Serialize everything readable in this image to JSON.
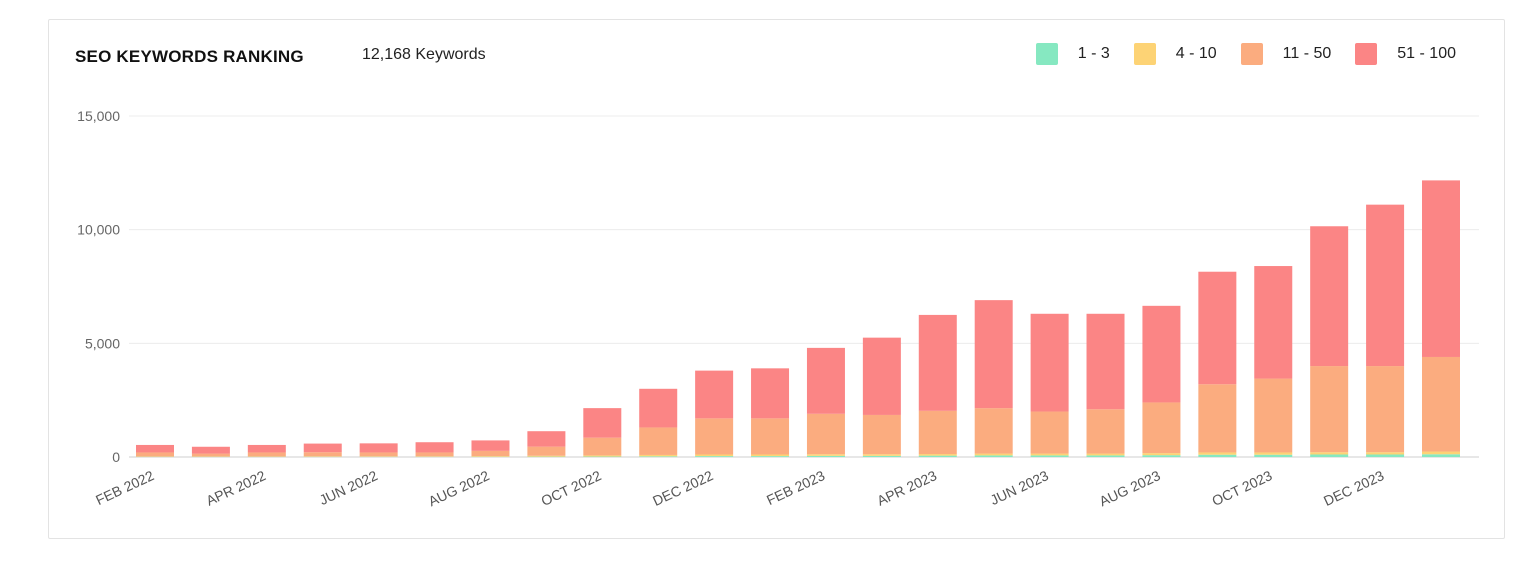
{
  "header": {
    "title": "SEO KEYWORDS RANKING",
    "keyword_count": "12,168 Keywords"
  },
  "legend": [
    {
      "label": "1 - 3",
      "color": "#86e8c1"
    },
    {
      "label": "4 - 10",
      "color": "#fdd375"
    },
    {
      "label": "11 - 50",
      "color": "#fbac7f"
    },
    {
      "label": "51 - 100",
      "color": "#fb8585"
    }
  ],
  "chart_data": {
    "type": "bar",
    "stacked": true,
    "title": "SEO KEYWORDS RANKING",
    "xlabel": "",
    "ylabel": "",
    "ylim": [
      0,
      15000
    ],
    "yticks": [
      0,
      5000,
      10000,
      15000
    ],
    "ytick_labels": [
      "0",
      "5,000",
      "10,000",
      "15,000"
    ],
    "grid": true,
    "legend_position": "top-right",
    "categories": [
      "FEB 2022",
      "MAR 2022",
      "APR 2022",
      "MAY 2022",
      "JUN 2022",
      "JUL 2022",
      "AUG 2022",
      "SEP 2022",
      "OCT 2022",
      "NOV 2022",
      "DEC 2022",
      "JAN 2023",
      "FEB 2023",
      "MAR 2023",
      "APR 2023",
      "MAY 2023",
      "JUN 2023",
      "JUL 2023",
      "AUG 2023",
      "SEP 2023",
      "OCT 2023",
      "NOV 2023",
      "DEC 2023",
      "JAN 2024"
    ],
    "xtick_labels": [
      "FEB 2022",
      "APR 2022",
      "JUN 2022",
      "AUG 2022",
      "OCT 2022",
      "DEC 2022",
      "FEB 2023",
      "APR 2023",
      "JUN 2023",
      "AUG 2023",
      "OCT 2023",
      "DEC 2023"
    ],
    "series": [
      {
        "name": "1 - 3",
        "color": "#86e8c1",
        "values": [
          10,
          10,
          10,
          10,
          10,
          10,
          10,
          15,
          20,
          30,
          40,
          40,
          50,
          50,
          60,
          70,
          70,
          70,
          80,
          100,
          100,
          110,
          110,
          120
        ]
      },
      {
        "name": "4 - 10",
        "color": "#fdd375",
        "values": [
          15,
          15,
          15,
          20,
          20,
          20,
          30,
          40,
          50,
          60,
          70,
          70,
          70,
          70,
          70,
          80,
          80,
          80,
          90,
          100,
          100,
          100,
          100,
          120
        ]
      },
      {
        "name": "11 - 50",
        "color": "#fbac7f",
        "values": [
          175,
          125,
          175,
          180,
          170,
          170,
          230,
          400,
          780,
          1210,
          1590,
          1590,
          1780,
          1730,
          1900,
          2000,
          1850,
          1950,
          2230,
          3000,
          3250,
          3790,
          3790,
          4160
        ]
      },
      {
        "name": "51 - 100",
        "color": "#fb8585",
        "values": [
          330,
          300,
          330,
          380,
          400,
          450,
          460,
          680,
          1300,
          1700,
          2100,
          2200,
          2900,
          3400,
          4220,
          4750,
          4300,
          4200,
          4250,
          4950,
          4950,
          6150,
          7100,
          7768
        ]
      }
    ]
  }
}
